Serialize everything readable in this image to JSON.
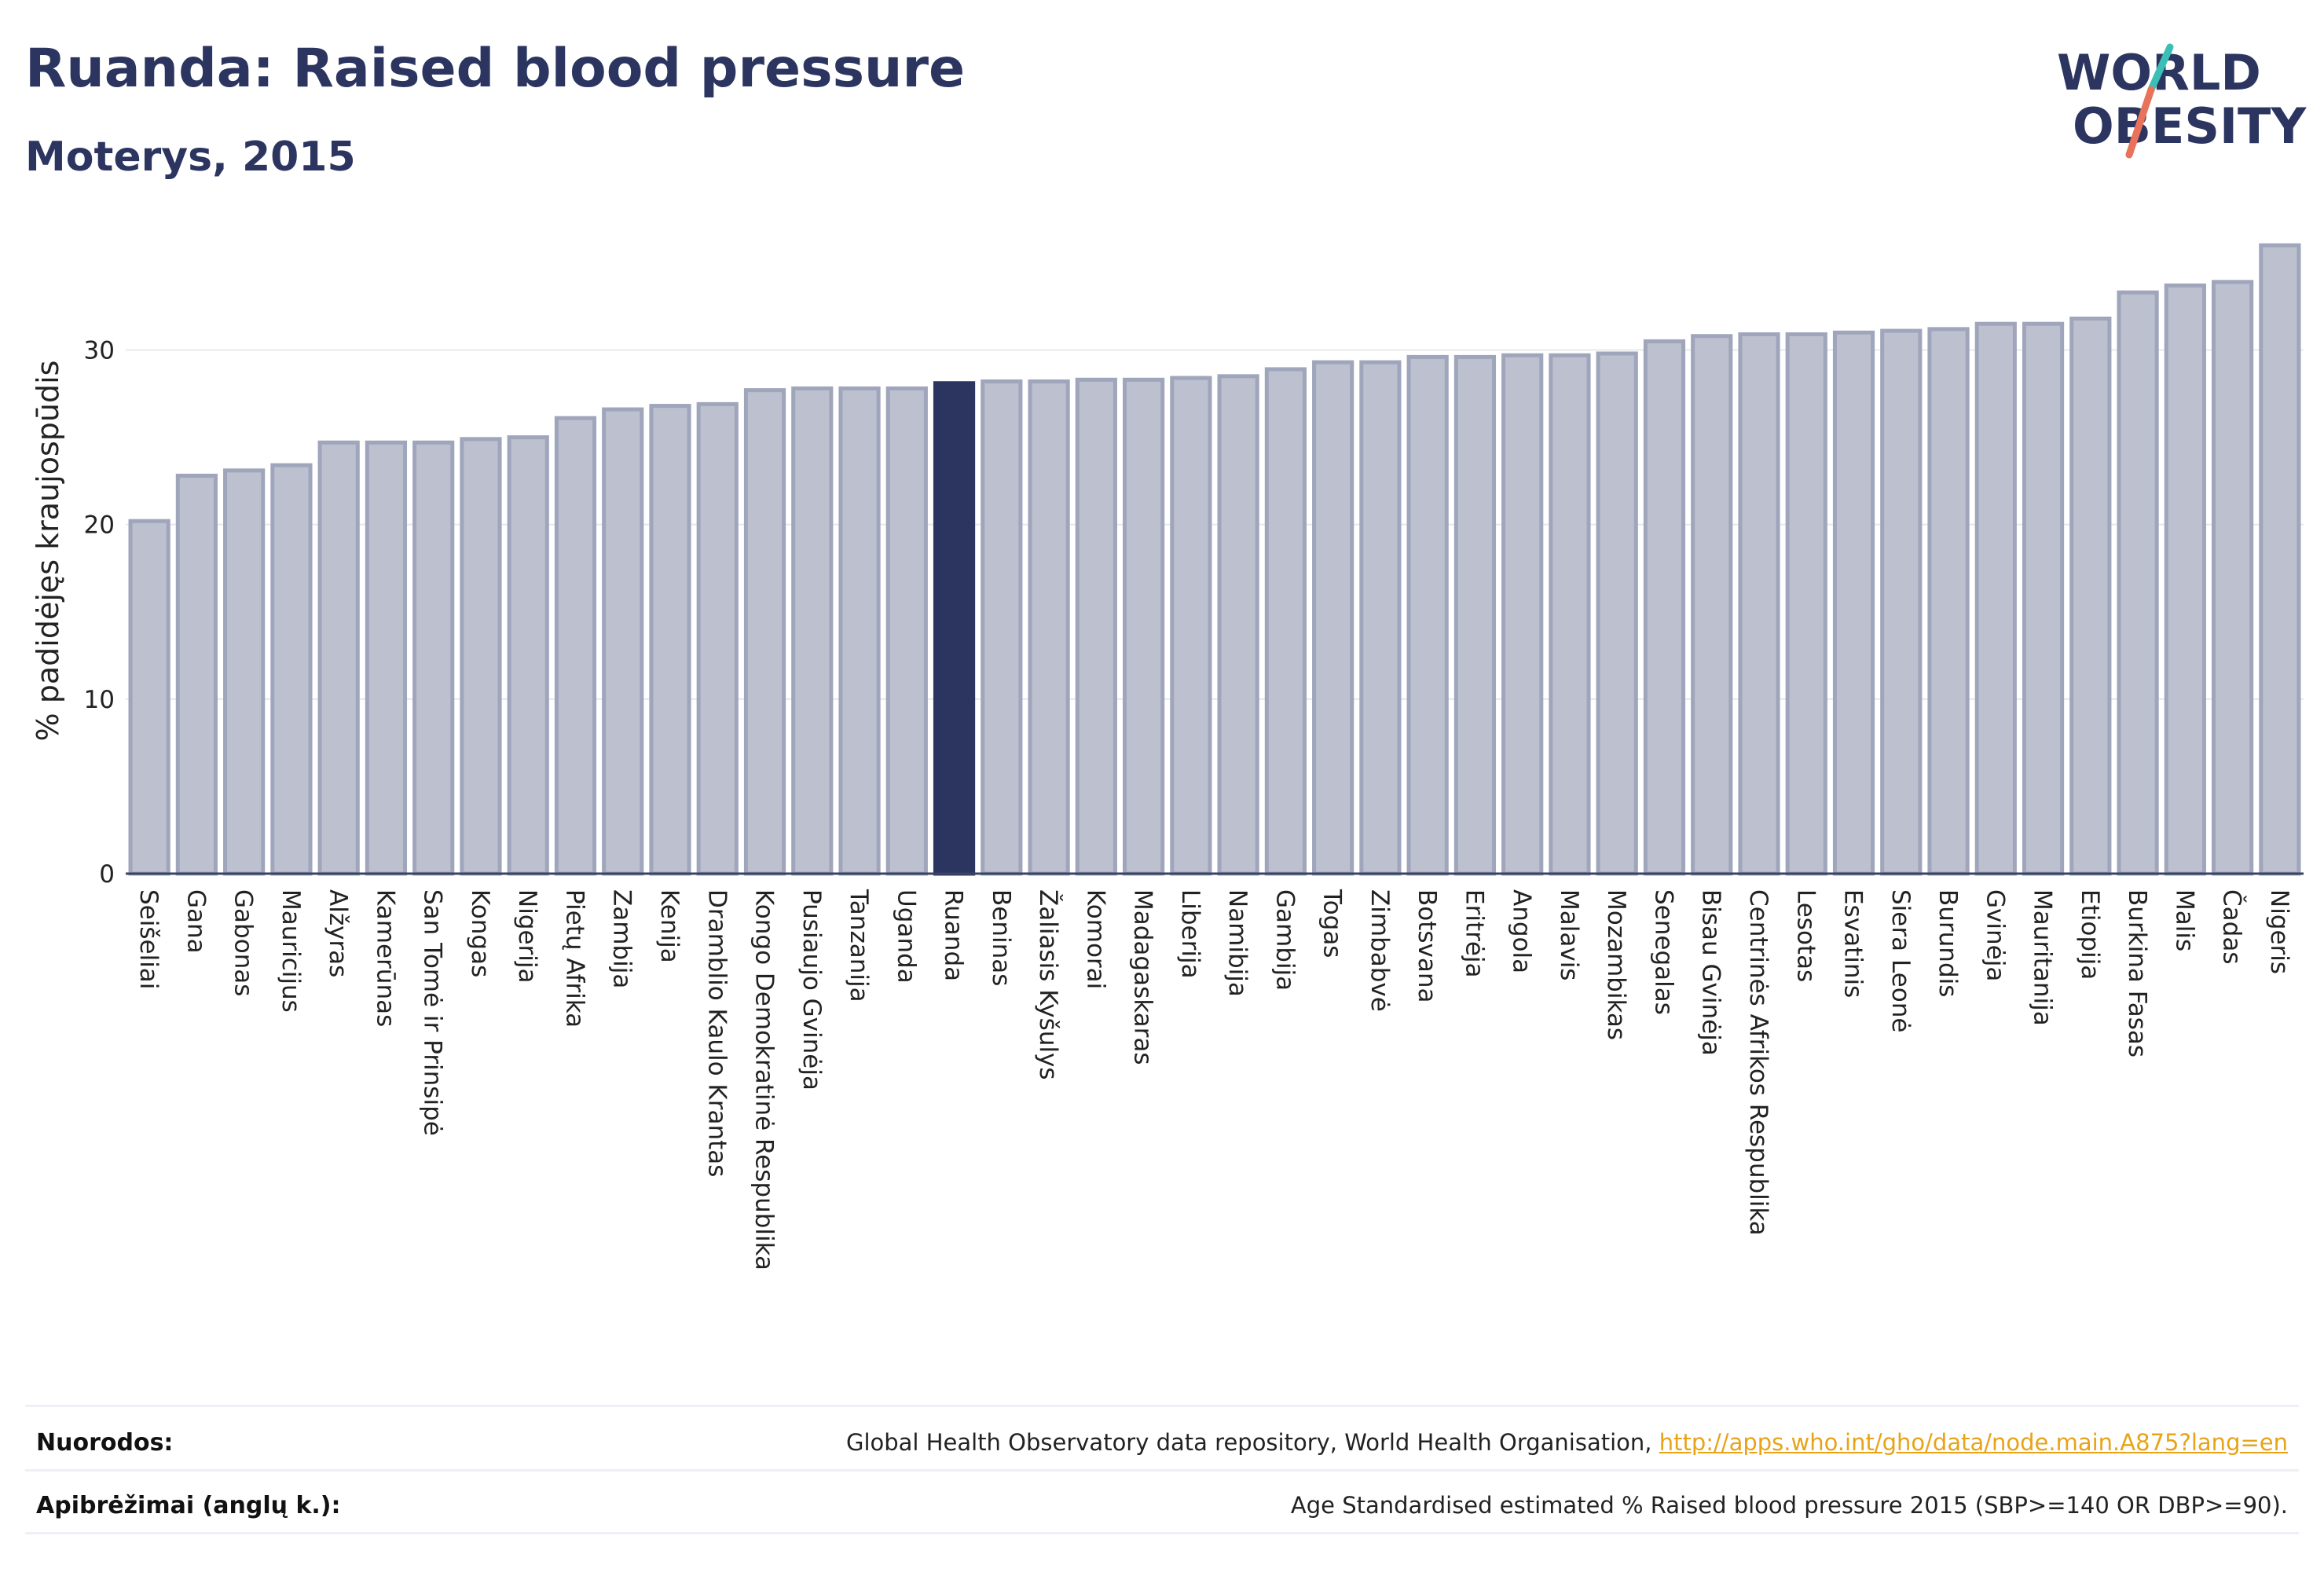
{
  "header": {
    "title": "Ruanda: Raised blood pressure",
    "subtitle": "Moterys, 2015"
  },
  "logo": {
    "line1": "WORLD",
    "line2": "OBESITY",
    "colors": {
      "text": "#2b3560",
      "slash_teal": "#3bbfb5",
      "slash_coral": "#e8735a"
    }
  },
  "colors": {
    "bar": "#bcc0cf",
    "bar_stroke": "#9fa5bb",
    "highlight": "#2b3560",
    "grid": "#e6e8ee",
    "axis": "#3a4266"
  },
  "chart_data": {
    "type": "bar",
    "title": "",
    "xlabel": "",
    "ylabel": "% padidėjęs kraujospūdis",
    "ylim": [
      0,
      37
    ],
    "yticks": [
      0,
      10,
      20,
      30
    ],
    "grid": true,
    "highlight": "Ruanda",
    "categories": [
      "Seišeliai",
      "Gana",
      "Gabonas",
      "Mauricijus",
      "Alžyras",
      "Kamerūnas",
      "San Tomė ir Prinsipė",
      "Kongas",
      "Nigerija",
      "Pietų Afrika",
      "Zambija",
      "Kenija",
      "Dramblio Kaulo Krantas",
      "Kongo Demokratinė Respublika",
      "Pusiaujo Gvinėja",
      "Tanzanija",
      "Uganda",
      "Ruanda",
      "Beninas",
      "Žaliasis Kyšulys",
      "Komorai",
      "Madagaskaras",
      "Liberija",
      "Namibija",
      "Gambija",
      "Togas",
      "Zimbabvė",
      "Botsvana",
      "Eritrėja",
      "Angola",
      "Malavis",
      "Mozambikas",
      "Senegalas",
      "Bisau Gvinėja",
      "Centrinės Afrikos Respublika",
      "Lesotas",
      "Esvatinis",
      "Siera Leonė",
      "Burundis",
      "Gvinėja",
      "Mauritanija",
      "Etiopija",
      "Burkina Fasas",
      "Malis",
      "Čadas",
      "Nigeris"
    ],
    "values": [
      20.2,
      22.8,
      23.1,
      23.4,
      24.7,
      24.7,
      24.7,
      24.9,
      25.0,
      26.1,
      26.6,
      26.8,
      26.9,
      27.7,
      27.8,
      27.8,
      27.8,
      28.1,
      28.2,
      28.2,
      28.3,
      28.3,
      28.4,
      28.5,
      28.9,
      29.3,
      29.3,
      29.6,
      29.6,
      29.7,
      29.7,
      29.8,
      30.5,
      30.8,
      30.9,
      30.9,
      31.0,
      31.1,
      31.2,
      31.5,
      31.5,
      31.8,
      33.3,
      33.7,
      33.9,
      36.0
    ]
  },
  "footer": {
    "sources_label": "Nuorodos:",
    "sources_text": "Global Health Observatory data repository, World Health Organisation,",
    "sources_link": "http://apps.who.int/gho/data/node.main.A875?lang=en",
    "definitions_label": "Apibrėžimai (anglų k.):",
    "definitions_text": "Age Standardised estimated % Raised blood pressure 2015 (SBP>=140 OR DBP>=90)."
  }
}
